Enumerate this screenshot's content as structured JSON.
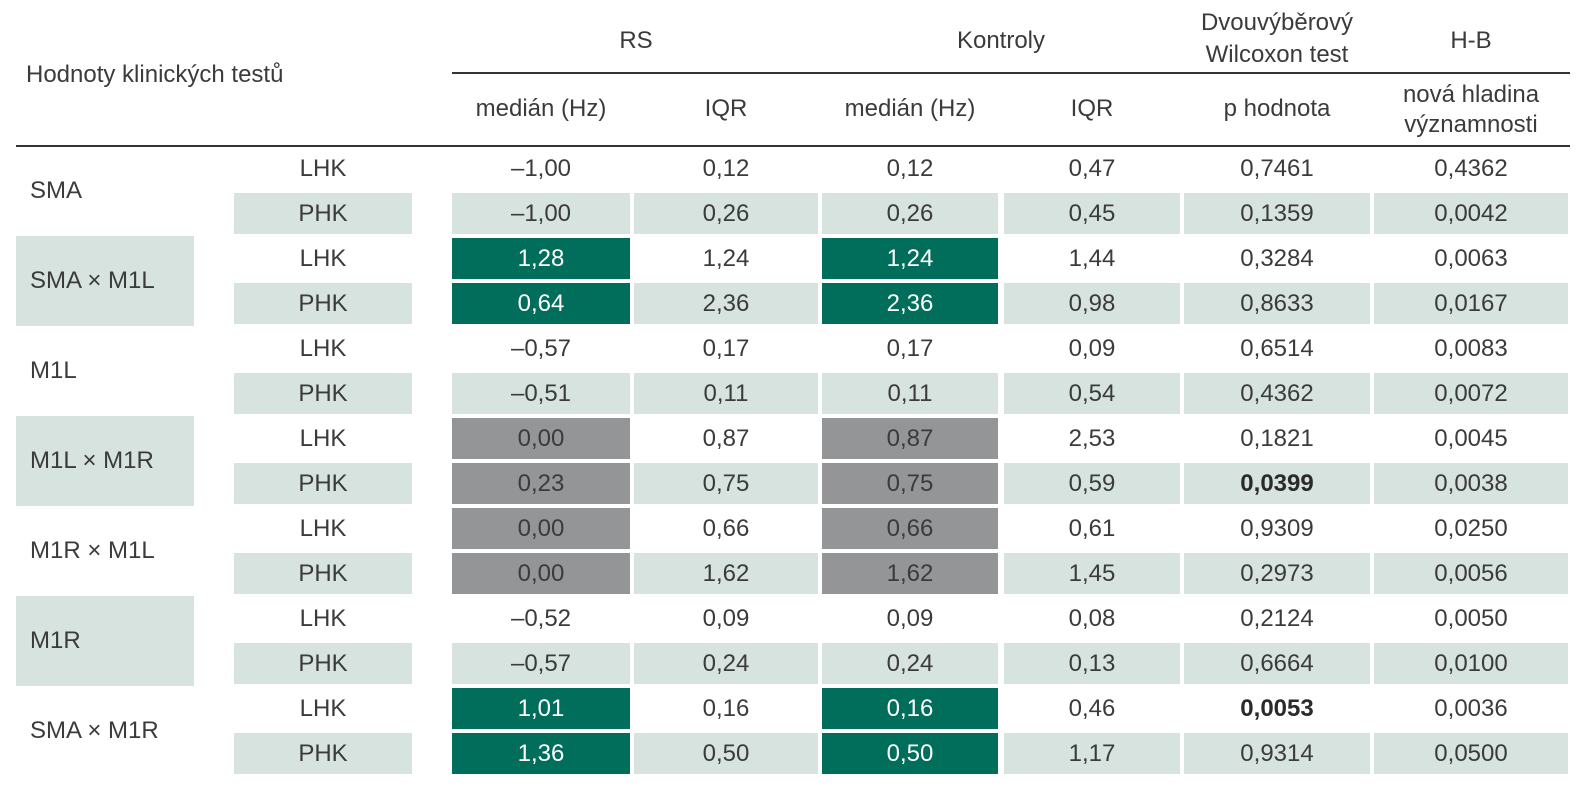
{
  "header": {
    "row_label": "Hodnoty klinických testů",
    "rs": "RS",
    "kontroly": "Kontroly",
    "wilcoxon_line1": "Dvouvýběrový",
    "wilcoxon_line2": "Wilcoxon test",
    "hb": "H-B",
    "rs_median": "medián (Hz)",
    "rs_iqr": "IQR",
    "k_median": "medián (Hz)",
    "k_iqr": "IQR",
    "p_value": "p hodnota",
    "hb_line1": "nová hladina",
    "hb_line2": "významnosti"
  },
  "groups": [
    {
      "label": "SMA",
      "shaded": false,
      "rows": [
        {
          "side": "LHK",
          "rs_median": "–1,00",
          "rs_iqr": "0,12",
          "k_median": "0,12",
          "k_iqr": "0,47",
          "p": "0,7461",
          "hb": "0,4362",
          "hl": "none",
          "p_bold": false
        },
        {
          "side": "PHK",
          "rs_median": "–1,00",
          "rs_iqr": "0,26",
          "k_median": "0,26",
          "k_iqr": "0,45",
          "p": "0,1359",
          "hb": "0,0042",
          "hl": "none",
          "p_bold": false
        }
      ]
    },
    {
      "label": "SMA × M1L",
      "shaded": true,
      "rows": [
        {
          "side": "LHK",
          "rs_median": "1,28",
          "rs_iqr": "1,24",
          "k_median": "1,24",
          "k_iqr": "1,44",
          "p": "0,3284",
          "hb": "0,0063",
          "hl": "green",
          "p_bold": false
        },
        {
          "side": "PHK",
          "rs_median": "0,64",
          "rs_iqr": "2,36",
          "k_median": "2,36",
          "k_iqr": "0,98",
          "p": "0,8633",
          "hb": "0,0167",
          "hl": "green",
          "p_bold": false
        }
      ]
    },
    {
      "label": "M1L",
      "shaded": false,
      "rows": [
        {
          "side": "LHK",
          "rs_median": "–0,57",
          "rs_iqr": "0,17",
          "k_median": "0,17",
          "k_iqr": "0,09",
          "p": "0,6514",
          "hb": "0,0083",
          "hl": "none",
          "p_bold": false
        },
        {
          "side": "PHK",
          "rs_median": "–0,51",
          "rs_iqr": "0,11",
          "k_median": "0,11",
          "k_iqr": "0,54",
          "p": "0,4362",
          "hb": "0,0072",
          "hl": "none",
          "p_bold": false
        }
      ]
    },
    {
      "label": "M1L × M1R",
      "shaded": true,
      "rows": [
        {
          "side": "LHK",
          "rs_median": "0,00",
          "rs_iqr": "0,87",
          "k_median": "0,87",
          "k_iqr": "2,53",
          "p": "0,1821",
          "hb": "0,0045",
          "hl": "gray",
          "p_bold": false
        },
        {
          "side": "PHK",
          "rs_median": "0,23",
          "rs_iqr": "0,75",
          "k_median": "0,75",
          "k_iqr": "0,59",
          "p": "0,0399",
          "hb": "0,0038",
          "hl": "gray",
          "p_bold": true
        }
      ]
    },
    {
      "label": "M1R × M1L",
      "shaded": false,
      "rows": [
        {
          "side": "LHK",
          "rs_median": "0,00",
          "rs_iqr": "0,66",
          "k_median": "0,66",
          "k_iqr": "0,61",
          "p": "0,9309",
          "hb": "0,0250",
          "hl": "gray",
          "p_bold": false
        },
        {
          "side": "PHK",
          "rs_median": "0,00",
          "rs_iqr": "1,62",
          "k_median": "1,62",
          "k_iqr": "1,45",
          "p": "0,2973",
          "hb": "0,0056",
          "hl": "gray",
          "p_bold": false
        }
      ]
    },
    {
      "label": "M1R",
      "shaded": true,
      "rows": [
        {
          "side": "LHK",
          "rs_median": "–0,52",
          "rs_iqr": "0,09",
          "k_median": "0,09",
          "k_iqr": "0,08",
          "p": "0,2124",
          "hb": "0,0050",
          "hl": "none",
          "p_bold": false
        },
        {
          "side": "PHK",
          "rs_median": "–0,57",
          "rs_iqr": "0,24",
          "k_median": "0,24",
          "k_iqr": "0,13",
          "p": "0,6664",
          "hb": "0,0100",
          "hl": "none",
          "p_bold": false
        }
      ]
    },
    {
      "label": "SMA × M1R",
      "shaded": false,
      "rows": [
        {
          "side": "LHK",
          "rs_median": "1,01",
          "rs_iqr": "0,16",
          "k_median": "0,16",
          "k_iqr": "0,46",
          "p": "0,0053",
          "hb": "0,0036",
          "hl": "green",
          "p_bold": true
        },
        {
          "side": "PHK",
          "rs_median": "1,36",
          "rs_iqr": "0,50",
          "k_median": "0,50",
          "k_iqr": "1,17",
          "p": "0,9314",
          "hb": "0,0500",
          "hl": "green",
          "p_bold": false
        }
      ]
    }
  ]
}
